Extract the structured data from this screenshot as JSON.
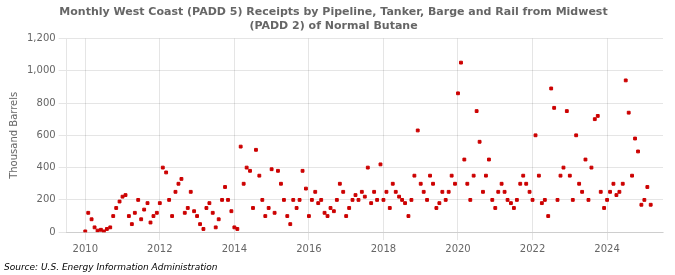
{
  "chart_data": {
    "type": "scatter",
    "title": "Monthly West Coast (PADD 5) Receipts by Pipeline, Tanker, Barge and Rail from Midwest\n(PADD 2) of Normal Butane",
    "y_label": "Thousand Barrels",
    "annotation": "Source: U.S. Energy Information Administration",
    "color": "#cc0000",
    "marker": "square",
    "grid": true,
    "xlim": [
      2009.5,
      2025.5
    ],
    "xticks": [
      2010,
      2012,
      2014,
      2016,
      2018,
      2020,
      2022,
      2024
    ],
    "ylim": [
      0,
      1200
    ],
    "yticks": [
      0,
      200,
      400,
      600,
      800,
      {
        "value": 1000,
        "label": "1,000"
      },
      {
        "value": 1200,
        "label": "1,200"
      }
    ],
    "x": [
      2010.0,
      2010.08,
      2010.17,
      2010.25,
      2010.33,
      2010.42,
      2010.5,
      2010.58,
      2010.67,
      2010.75,
      2010.83,
      2010.92,
      2011.0,
      2011.08,
      2011.17,
      2011.25,
      2011.33,
      2011.42,
      2011.5,
      2011.58,
      2011.67,
      2011.75,
      2011.83,
      2011.92,
      2012.0,
      2012.08,
      2012.17,
      2012.25,
      2012.33,
      2012.42,
      2012.5,
      2012.58,
      2012.67,
      2012.75,
      2012.83,
      2012.92,
      2013.0,
      2013.08,
      2013.17,
      2013.25,
      2013.33,
      2013.42,
      2013.5,
      2013.58,
      2013.67,
      2013.75,
      2013.83,
      2013.92,
      2014.0,
      2014.08,
      2014.17,
      2014.25,
      2014.33,
      2014.42,
      2014.5,
      2014.58,
      2014.67,
      2014.75,
      2014.83,
      2014.92,
      2015.0,
      2015.08,
      2015.17,
      2015.25,
      2015.33,
      2015.42,
      2015.5,
      2015.58,
      2015.67,
      2015.75,
      2015.83,
      2015.92,
      2016.0,
      2016.08,
      2016.17,
      2016.25,
      2016.33,
      2016.42,
      2016.5,
      2016.58,
      2016.67,
      2016.75,
      2016.83,
      2016.92,
      2017.0,
      2017.08,
      2017.17,
      2017.25,
      2017.33,
      2017.42,
      2017.5,
      2017.58,
      2017.67,
      2017.75,
      2017.83,
      2017.92,
      2018.0,
      2018.08,
      2018.17,
      2018.25,
      2018.33,
      2018.42,
      2018.5,
      2018.58,
      2018.67,
      2018.75,
      2018.83,
      2018.92,
      2019.0,
      2019.08,
      2019.17,
      2019.25,
      2019.33,
      2019.42,
      2019.5,
      2019.58,
      2019.67,
      2019.75,
      2019.83,
      2019.92,
      2020.0,
      2020.08,
      2020.17,
      2020.25,
      2020.33,
      2020.42,
      2020.5,
      2020.58,
      2020.67,
      2020.75,
      2020.83,
      2020.92,
      2021.0,
      2021.08,
      2021.17,
      2021.25,
      2021.33,
      2021.42,
      2021.5,
      2021.58,
      2021.67,
      2021.75,
      2021.83,
      2021.92,
      2022.0,
      2022.08,
      2022.17,
      2022.25,
      2022.33,
      2022.42,
      2022.5,
      2022.58,
      2022.67,
      2022.75,
      2022.83,
      2022.92,
      2023.0,
      2023.08,
      2023.17,
      2023.25,
      2023.33,
      2023.42,
      2023.5,
      2023.58,
      2023.67,
      2023.75,
      2023.83,
      2023.92,
      2024.0,
      2024.08,
      2024.17,
      2024.25,
      2024.33,
      2024.42,
      2024.5,
      2024.58,
      2024.67,
      2024.75,
      2024.83,
      2024.92,
      2025.0,
      2025.08,
      2025.17
    ],
    "values": [
      5,
      120,
      80,
      30,
      10,
      15,
      5,
      20,
      30,
      100,
      150,
      190,
      220,
      230,
      100,
      50,
      120,
      200,
      80,
      140,
      180,
      60,
      100,
      120,
      180,
      400,
      370,
      200,
      100,
      250,
      300,
      330,
      120,
      150,
      250,
      130,
      100,
      50,
      20,
      150,
      180,
      120,
      30,
      80,
      200,
      280,
      200,
      130,
      30,
      20,
      530,
      300,
      400,
      380,
      150,
      510,
      350,
      200,
      100,
      150,
      390,
      120,
      380,
      300,
      200,
      100,
      50,
      200,
      150,
      200,
      380,
      270,
      100,
      200,
      250,
      180,
      200,
      120,
      100,
      150,
      130,
      200,
      300,
      250,
      100,
      150,
      200,
      230,
      200,
      250,
      220,
      400,
      180,
      250,
      200,
      420,
      200,
      250,
      150,
      300,
      250,
      220,
      200,
      180,
      100,
      200,
      350,
      630,
      300,
      250,
      200,
      350,
      300,
      150,
      180,
      250,
      200,
      250,
      350,
      300,
      860,
      1050,
      450,
      300,
      200,
      350,
      750,
      560,
      250,
      350,
      450,
      200,
      150,
      250,
      300,
      250,
      200,
      180,
      150,
      200,
      300,
      350,
      300,
      250,
      200,
      600,
      350,
      180,
      200,
      100,
      890,
      770,
      200,
      350,
      400,
      750,
      350,
      200,
      600,
      300,
      250,
      450,
      200,
      400,
      700,
      720,
      250,
      150,
      200,
      250,
      300,
      230,
      250,
      300,
      940,
      740,
      350,
      580,
      500,
      170,
      200,
      280,
      170
    ]
  }
}
